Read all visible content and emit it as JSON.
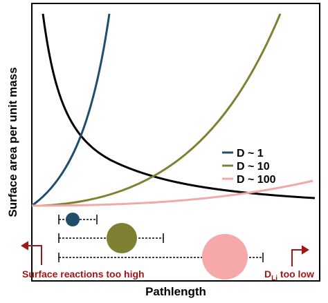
{
  "axes": {
    "y_label": "Surface area per unit mass",
    "x_label": "Pathlength"
  },
  "legend": [
    "D ~ 1",
    "D ~ 10",
    "D ~ 100"
  ],
  "annotations": {
    "left": "Surface reactions too high",
    "right": {
      "main": "D",
      "sub": "Li",
      "rest": " too low"
    }
  }
}
